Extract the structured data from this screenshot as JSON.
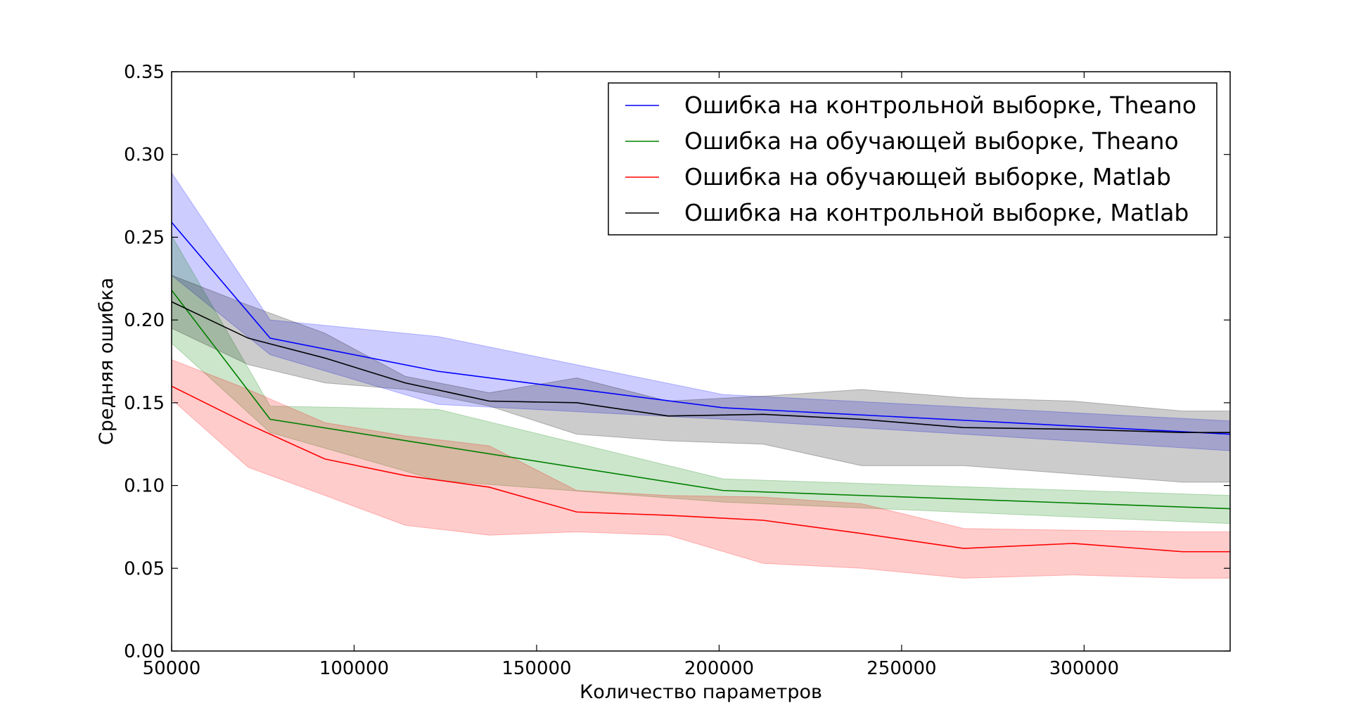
{
  "chart_data": {
    "type": "line",
    "title": "",
    "xlabel": "Количество параметров",
    "ylabel": "Средняя ошибка",
    "xlim": [
      50000,
      340000
    ],
    "ylim": [
      0.0,
      0.35
    ],
    "x_ticks": [
      50000,
      100000,
      150000,
      200000,
      250000,
      300000
    ],
    "x_tick_labels": [
      "50000",
      "100000",
      "150000",
      "200000",
      "250000",
      "300000"
    ],
    "y_ticks": [
      0.0,
      0.05,
      0.1,
      0.15,
      0.2,
      0.25,
      0.3,
      0.35
    ],
    "y_tick_labels": [
      "0.00",
      "0.05",
      "0.10",
      "0.15",
      "0.20",
      "0.25",
      "0.30",
      "0.35"
    ],
    "grid": false,
    "legend_position": "top-right",
    "series": [
      {
        "name": "Ошибка на контрольной выборке, Theano",
        "color": "#0000ff",
        "x": [
          50000,
          77000,
          123000,
          201000,
          340000
        ],
        "y": [
          0.259,
          0.189,
          0.169,
          0.147,
          0.131
        ],
        "band_x": [
          50000,
          77000,
          123000,
          201000,
          340000
        ],
        "band_upper": [
          0.289,
          0.2,
          0.19,
          0.155,
          0.139
        ],
        "band_lower": [
          0.227,
          0.179,
          0.149,
          0.14,
          0.121
        ]
      },
      {
        "name": "Ошибка на  обучающей выборке, Theano",
        "color": "#008000",
        "x": [
          50000,
          77000,
          123000,
          201000,
          340000
        ],
        "y": [
          0.218,
          0.14,
          0.124,
          0.097,
          0.086
        ],
        "band_x": [
          50000,
          77000,
          123000,
          201000,
          340000
        ],
        "band_upper": [
          0.251,
          0.148,
          0.146,
          0.104,
          0.094
        ],
        "band_lower": [
          0.186,
          0.132,
          0.103,
          0.09,
          0.077
        ]
      },
      {
        "name": "Ошибка на обучающей выборке, Matlab",
        "color": "#ff0000",
        "x": [
          50000,
          71000,
          92000,
          114000,
          137000,
          161000,
          186000,
          212000,
          239000,
          267000,
          297000,
          327000,
          340000
        ],
        "y": [
          0.16,
          0.137,
          0.116,
          0.106,
          0.099,
          0.084,
          0.082,
          0.079,
          0.071,
          0.062,
          0.065,
          0.06,
          0.06
        ],
        "band_x": [
          50000,
          71000,
          92000,
          114000,
          137000,
          161000,
          186000,
          212000,
          239000,
          267000,
          297000,
          327000,
          340000
        ],
        "band_upper": [
          0.176,
          0.158,
          0.138,
          0.13,
          0.124,
          0.097,
          0.094,
          0.093,
          0.089,
          0.074,
          0.073,
          0.072,
          0.072
        ],
        "band_lower": [
          0.152,
          0.111,
          0.094,
          0.076,
          0.07,
          0.072,
          0.07,
          0.053,
          0.05,
          0.044,
          0.046,
          0.044,
          0.044
        ]
      },
      {
        "name": "Ошибка на контрольной выборке, Matlab",
        "color": "#000000",
        "x": [
          50000,
          71000,
          92000,
          114000,
          137000,
          161000,
          186000,
          212000,
          239000,
          267000,
          297000,
          327000,
          340000
        ],
        "y": [
          0.211,
          0.189,
          0.177,
          0.162,
          0.151,
          0.15,
          0.142,
          0.143,
          0.14,
          0.135,
          0.134,
          0.132,
          0.132
        ],
        "band_x": [
          50000,
          71000,
          92000,
          114000,
          137000,
          161000,
          186000,
          212000,
          239000,
          267000,
          297000,
          327000,
          340000
        ],
        "band_upper": [
          0.227,
          0.209,
          0.192,
          0.166,
          0.156,
          0.165,
          0.151,
          0.154,
          0.158,
          0.153,
          0.151,
          0.145,
          0.145
        ],
        "band_lower": [
          0.195,
          0.173,
          0.162,
          0.158,
          0.148,
          0.131,
          0.127,
          0.125,
          0.112,
          0.112,
          0.107,
          0.102,
          0.102
        ]
      }
    ]
  }
}
